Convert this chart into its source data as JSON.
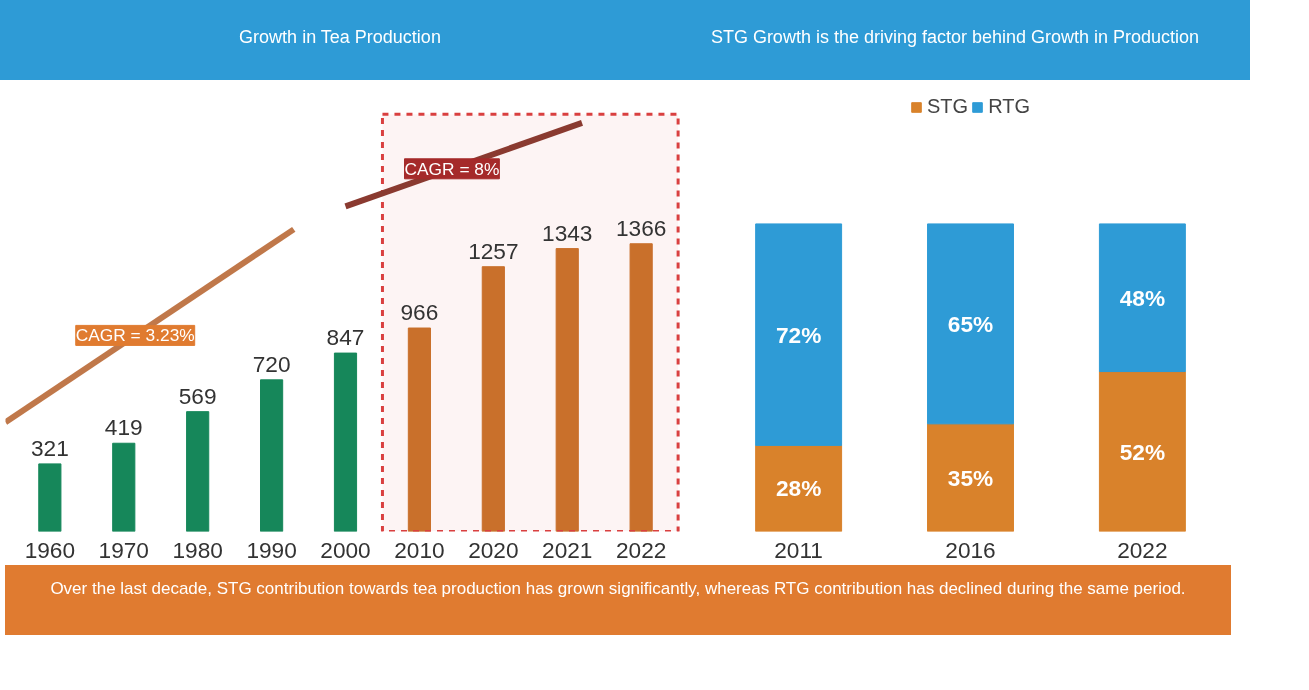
{
  "chart_data": [
    {
      "type": "bar",
      "title": "Growth in Tea Production",
      "categories": [
        "1960",
        "1970",
        "1980",
        "1990",
        "2000",
        "2010",
        "2020",
        "2021",
        "2022"
      ],
      "values": [
        321,
        419,
        569,
        720,
        847,
        966,
        1257,
        1343,
        1366
      ],
      "colors": [
        "#16875a",
        "#16875a",
        "#16875a",
        "#16875a",
        "#16875a",
        "#c8732a",
        "#c8732a",
        "#c8732a",
        "#c8732a"
      ],
      "data_labels": true,
      "tick_labels": "x",
      "grid": false,
      "bands": [
        {
          "axis": "x",
          "from": "2010",
          "to": "2022",
          "label": null,
          "color": "#d94040"
        }
      ],
      "annotations": [
        "CAGR = 3.23%",
        "CAGR = 8%"
      ]
    },
    {
      "type": "bar",
      "title": "STG Growth is the driving factor behind Growth in Production",
      "categories": [
        "2011",
        "2016",
        "2022"
      ],
      "stacked": true,
      "legend": "top",
      "tick_labels": "x",
      "grid": false,
      "series": [
        {
          "name": "STG",
          "color": "#d9822b",
          "values": [
            28,
            35,
            52
          ],
          "value_labels": [
            "28%",
            "35%",
            "52%"
          ]
        },
        {
          "name": "RTG",
          "color": "#2e9bd6",
          "values": [
            72,
            65,
            48
          ],
          "value_labels": [
            "72%",
            "65%",
            "48%"
          ]
        }
      ],
      "annotations": [
        "Over the last decade, STG contribution towards tea production has grown significantly, whereas RTG contribution has declined during the same period."
      ]
    }
  ]
}
